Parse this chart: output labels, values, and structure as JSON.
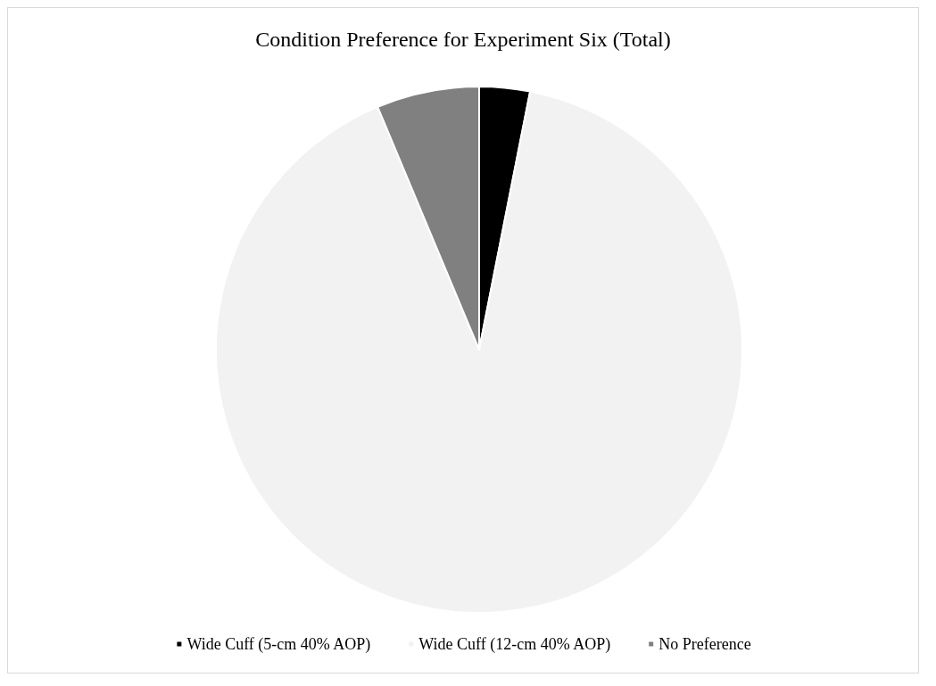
{
  "chart_data": {
    "type": "pie",
    "title": "Condition Preference for Experiment Six (Total)",
    "categories": [
      "Wide Cuff (5-cm 40% AOP)",
      "Wide Cuff (12-cm 40% AOP)",
      "No Preference"
    ],
    "values": [
      3.1,
      90.6,
      6.3
    ],
    "colors": [
      "#000000",
      "#f2f2f2",
      "#808080"
    ],
    "legend": "bottom"
  }
}
